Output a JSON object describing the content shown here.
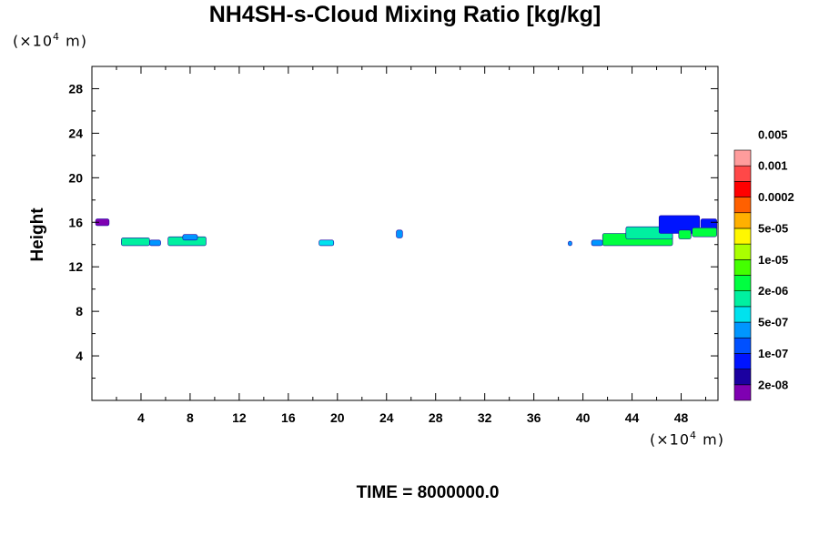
{
  "chart_data": {
    "type": "heatmap",
    "title": "NH4SH-s-Cloud Mixing Ratio [kg/kg]",
    "ylabel": "Height",
    "xlabel": "",
    "x_unit": {
      "prefix": "(×10",
      "exp": "4",
      "suffix": " m)"
    },
    "y_unit": {
      "prefix": "(×10",
      "exp": "4",
      "suffix": " m)"
    },
    "xlim": [
      0,
      51
    ],
    "ylim": [
      0,
      30
    ],
    "x_ticks": [
      4,
      8,
      12,
      16,
      20,
      24,
      28,
      32,
      36,
      40,
      44,
      48
    ],
    "y_ticks": [
      4,
      8,
      12,
      16,
      20,
      24,
      28
    ],
    "colorbar": {
      "colors": [
        "#7f00b2",
        "#1b00a0",
        "#0014ff",
        "#0050ff",
        "#0096ff",
        "#00e2ee",
        "#00f0a0",
        "#00ff40",
        "#44ff00",
        "#aaff00",
        "#fff700",
        "#ffb000",
        "#ff6000",
        "#ff0000",
        "#ff4848",
        "#ff9c9c"
      ],
      "labels": [
        "2e-08",
        "1e-07",
        "5e-07",
        "2e-06",
        "1e-05",
        "5e-05",
        "0.0002",
        "0.001",
        "0.005"
      ]
    },
    "regions": [
      {
        "x": [
          0.3,
          1.4
        ],
        "y": [
          15.7,
          16.3
        ],
        "level": 0
      },
      {
        "x": [
          2.4,
          4.7
        ],
        "y": [
          13.9,
          14.6
        ],
        "level": 6
      },
      {
        "x": [
          4.7,
          5.6
        ],
        "y": [
          13.9,
          14.4
        ],
        "level": 4
      },
      {
        "x": [
          6.2,
          9.3
        ],
        "y": [
          13.9,
          14.7
        ],
        "level": 6
      },
      {
        "x": [
          7.4,
          8.6
        ],
        "y": [
          14.4,
          14.9
        ],
        "level": 4
      },
      {
        "x": [
          18.5,
          19.7
        ],
        "y": [
          13.9,
          14.4
        ],
        "level": 5
      },
      {
        "x": [
          24.8,
          25.3
        ],
        "y": [
          14.6,
          15.3
        ],
        "level": 4
      },
      {
        "x": [
          38.8,
          39.1
        ],
        "y": [
          13.9,
          14.3
        ],
        "level": 4
      },
      {
        "x": [
          40.7,
          41.6
        ],
        "y": [
          13.9,
          14.4
        ],
        "level": 4
      },
      {
        "x": [
          41.6,
          47.3
        ],
        "y": [
          13.9,
          15.0
        ],
        "level": 7
      },
      {
        "x": [
          43.5,
          47.3
        ],
        "y": [
          14.5,
          15.6
        ],
        "level": 6
      },
      {
        "x": [
          46.2,
          49.5
        ],
        "y": [
          15.0,
          16.6
        ],
        "level": 2
      },
      {
        "x": [
          47.8,
          48.8
        ],
        "y": [
          14.5,
          15.3
        ],
        "level": 7
      },
      {
        "x": [
          49.6,
          50.9
        ],
        "y": [
          15.3,
          16.3
        ],
        "level": 2
      },
      {
        "x": [
          48.9,
          50.9
        ],
        "y": [
          14.7,
          15.5
        ],
        "level": 7
      }
    ]
  },
  "time_label": "TIME = 8000000.0"
}
